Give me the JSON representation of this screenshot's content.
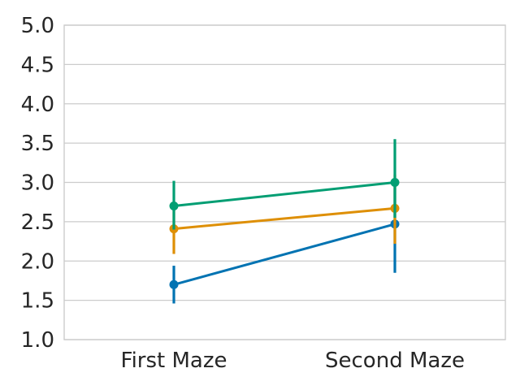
{
  "chart_data": {
    "type": "line",
    "title": "",
    "xlabel": "",
    "ylabel": "",
    "categories": [
      "First Maze",
      "Second Maze"
    ],
    "ylim": [
      1.0,
      5.0
    ],
    "yticks": [
      "1.0",
      "1.5",
      "2.0",
      "2.5",
      "3.0",
      "3.5",
      "4.0",
      "4.5",
      "5.0"
    ],
    "grid": true,
    "legend": "none",
    "series": [
      {
        "color": "#0173b2",
        "values": [
          1.7,
          2.47
        ],
        "err_low": [
          1.46,
          1.85
        ],
        "err_high": [
          1.94,
          3.05
        ]
      },
      {
        "color": "#de8f05",
        "values": [
          2.41,
          2.67
        ],
        "err_low": [
          2.09,
          2.22
        ],
        "err_high": [
          2.7,
          3.1
        ]
      },
      {
        "color": "#029e73",
        "values": [
          2.7,
          3.0
        ],
        "err_low": [
          2.4,
          2.55
        ],
        "err_high": [
          3.02,
          3.55
        ]
      }
    ]
  }
}
